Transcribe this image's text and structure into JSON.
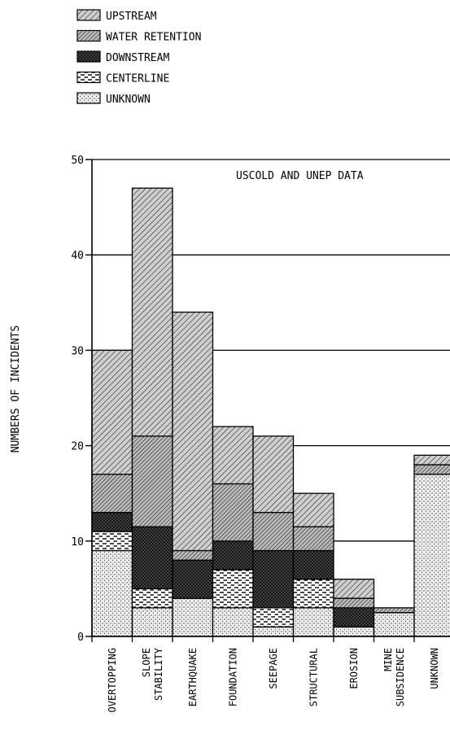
{
  "chart_data": {
    "type": "bar",
    "stacked": true,
    "title": "",
    "annotation": "USCOLD AND UNEP DATA",
    "xlabel": "",
    "ylabel": "NUMBERS OF INCIDENTS",
    "ylim": [
      0,
      50
    ],
    "yticks": [
      0,
      10,
      20,
      30,
      40,
      50
    ],
    "grid": true,
    "legend_position": "top-left",
    "categories": [
      [
        "OVERTOPPING"
      ],
      [
        "SLOPE",
        "STABILITY"
      ],
      [
        "EARTHQUAKE"
      ],
      [
        "FOUNDATION"
      ],
      [
        "SEEPAGE"
      ],
      [
        "STRUCTURAL"
      ],
      [
        "EROSION"
      ],
      [
        "MINE",
        "SUBSIDENCE"
      ],
      [
        "UNKNOWN"
      ]
    ],
    "series": [
      {
        "name": "UNKNOWN",
        "pattern": "dots",
        "values": [
          9,
          3,
          4,
          3,
          1,
          3,
          1,
          2.5,
          17
        ]
      },
      {
        "name": "CENTERLINE",
        "pattern": "dashes",
        "values": [
          2,
          2,
          0,
          4,
          2,
          3,
          0,
          0,
          0
        ]
      },
      {
        "name": "DOWNSTREAM",
        "pattern": "crosshatch",
        "values": [
          2,
          6.5,
          4,
          3,
          6,
          3,
          2,
          0,
          0
        ]
      },
      {
        "name": "WATER RETENTION",
        "pattern": "diagonal-dense",
        "values": [
          4,
          9.5,
          1,
          6,
          4,
          2.5,
          1,
          0.5,
          1
        ]
      },
      {
        "name": "UPSTREAM",
        "pattern": "diagonal",
        "values": [
          13,
          26,
          25,
          6,
          8,
          3.5,
          2,
          0,
          1
        ]
      }
    ],
    "legend_order": [
      "UPSTREAM",
      "WATER RETENTION",
      "DOWNSTREAM",
      "CENTERLINE",
      "UNKNOWN"
    ]
  }
}
